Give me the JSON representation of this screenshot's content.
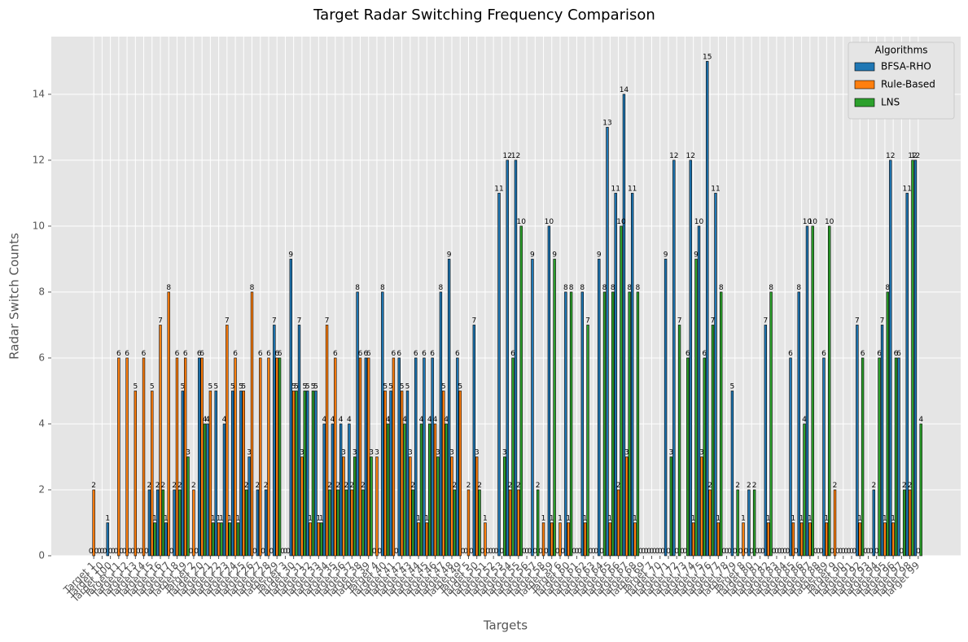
{
  "chart_data": {
    "type": "bar",
    "title": "Target Radar Switching Frequency Comparison",
    "xlabel": "Targets",
    "ylabel": "Radar Switch Counts",
    "legend_title": "Algorithms",
    "legend_position": "upper right",
    "grid": true,
    "categories": [
      "Target 1",
      "Target 10",
      "Target 100",
      "Target 11",
      "Target 12",
      "Target 13",
      "Target 14",
      "Target 15",
      "Target 16",
      "Target 17",
      "Target 18",
      "Target 19",
      "Target 2",
      "Target 20",
      "Target 21",
      "Target 22",
      "Target 23",
      "Target 24",
      "Target 25",
      "Target 26",
      "Target 27",
      "Target 28",
      "Target 29",
      "Target 3",
      "Target 30",
      "Target 31",
      "Target 32",
      "Target 33",
      "Target 34",
      "Target 35",
      "Target 36",
      "Target 37",
      "Target 38",
      "Target 39",
      "Target 4",
      "Target 40",
      "Target 41",
      "Target 42",
      "Target 43",
      "Target 44",
      "Target 45",
      "Target 46",
      "Target 47",
      "Target 48",
      "Target 49",
      "Target 5",
      "Target 50",
      "Target 51",
      "Target 52",
      "Target 53",
      "Target 54",
      "Target 55",
      "Target 56",
      "Target 57",
      "Target 58",
      "Target 59",
      "Target 6",
      "Target 60",
      "Target 61",
      "Target 62",
      "Target 63",
      "Target 64",
      "Target 65",
      "Target 66",
      "Target 67",
      "Target 68",
      "Target 69",
      "Target 7",
      "Target 70",
      "Target 71",
      "Target 72",
      "Target 73",
      "Target 74",
      "Target 75",
      "Target 76",
      "Target 77",
      "Target 78",
      "Target 79",
      "Target 8",
      "Target 80",
      "Target 81",
      "Target 82",
      "Target 83",
      "Target 84",
      "Target 85",
      "Target 86",
      "Target 87",
      "Target 88",
      "Target 89",
      "Target 9",
      "Target 90",
      "Target 91",
      "Target 92",
      "Target 93",
      "Target 94",
      "Target 95",
      "Target 96",
      "Target 97",
      "Target 98",
      "Target 99"
    ],
    "series": [
      {
        "name": "BFSA-RHO",
        "color": "#1f77b4",
        "values": [
          0,
          0,
          1,
          0,
          0,
          0,
          0,
          2,
          2,
          1,
          2,
          5,
          0,
          6,
          4,
          5,
          4,
          5,
          5,
          3,
          2,
          2,
          7,
          0,
          9,
          7,
          5,
          5,
          4,
          4,
          4,
          4,
          8,
          6,
          0,
          8,
          5,
          6,
          5,
          6,
          6,
          6,
          8,
          9,
          6,
          0,
          7,
          0,
          0,
          11,
          12,
          12,
          0,
          9,
          0,
          10,
          0,
          8,
          0,
          8,
          0,
          9,
          13,
          11,
          14,
          11,
          0,
          0,
          0,
          9,
          12,
          0,
          12,
          10,
          15,
          11,
          0,
          5,
          0,
          2,
          0,
          7,
          0,
          0,
          6,
          8,
          10,
          0,
          6,
          0,
          0,
          0,
          7,
          0,
          2,
          7,
          12,
          6,
          11,
          12
        ]
      },
      {
        "name": "Rule-Based",
        "color": "#ff7f0e",
        "values": [
          2,
          0,
          0,
          6,
          6,
          5,
          6,
          5,
          7,
          8,
          6,
          6,
          2,
          6,
          5,
          1,
          7,
          6,
          5,
          8,
          6,
          6,
          6,
          0,
          5,
          3,
          1,
          1,
          7,
          6,
          3,
          2,
          6,
          6,
          3,
          5,
          6,
          5,
          3,
          1,
          1,
          4,
          5,
          3,
          5,
          2,
          3,
          1,
          0,
          0,
          2,
          2,
          0,
          0,
          1,
          1,
          1,
          1,
          0,
          1,
          0,
          0,
          1,
          2,
          3,
          1,
          0,
          0,
          0,
          0,
          0,
          0,
          1,
          3,
          2,
          1,
          0,
          0,
          1,
          0,
          0,
          1,
          0,
          0,
          1,
          1,
          1,
          0,
          1,
          2,
          0,
          0,
          1,
          0,
          0,
          1,
          1,
          0,
          2,
          0
        ]
      },
      {
        "name": "LNS",
        "color": "#2ca02c",
        "values": [
          0,
          0,
          0,
          0,
          0,
          0,
          0,
          1,
          2,
          0,
          2,
          3,
          0,
          4,
          1,
          1,
          1,
          1,
          2,
          0,
          0,
          0,
          6,
          0,
          5,
          5,
          5,
          1,
          2,
          2,
          2,
          3,
          2,
          3,
          0,
          4,
          0,
          4,
          2,
          4,
          4,
          3,
          4,
          2,
          0,
          0,
          2,
          0,
          0,
          3,
          6,
          10,
          0,
          2,
          0,
          9,
          0,
          8,
          0,
          7,
          0,
          8,
          8,
          10,
          8,
          8,
          0,
          0,
          0,
          3,
          7,
          6,
          9,
          6,
          7,
          8,
          0,
          2,
          0,
          2,
          0,
          8,
          0,
          0,
          0,
          4,
          10,
          0,
          10,
          0,
          0,
          0,
          6,
          0,
          6,
          8,
          6,
          2,
          12,
          4
        ]
      }
    ],
    "ylim": [
      0,
      15.75
    ],
    "yticks": [
      0,
      2,
      4,
      6,
      8,
      10,
      12,
      14
    ]
  }
}
